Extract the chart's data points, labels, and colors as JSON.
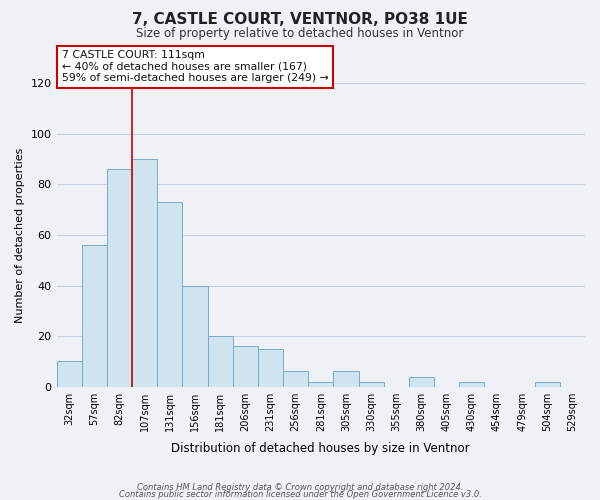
{
  "title": "7, CASTLE COURT, VENTNOR, PO38 1UE",
  "subtitle": "Size of property relative to detached houses in Ventnor",
  "xlabel": "Distribution of detached houses by size in Ventnor",
  "ylabel": "Number of detached properties",
  "bar_color": "#d0e4f0",
  "bar_edge_color": "#7aaac8",
  "categories": [
    "32sqm",
    "57sqm",
    "82sqm",
    "107sqm",
    "131sqm",
    "156sqm",
    "181sqm",
    "206sqm",
    "231sqm",
    "256sqm",
    "281sqm",
    "305sqm",
    "330sqm",
    "355sqm",
    "380sqm",
    "405sqm",
    "430sqm",
    "454sqm",
    "479sqm",
    "504sqm",
    "529sqm"
  ],
  "values": [
    10,
    56,
    86,
    90,
    73,
    40,
    20,
    16,
    15,
    6,
    2,
    6,
    2,
    0,
    4,
    0,
    2,
    0,
    0,
    2,
    0
  ],
  "ylim": [
    0,
    120
  ],
  "yticks": [
    0,
    20,
    40,
    60,
    80,
    100,
    120
  ],
  "vline_color": "#cc0000",
  "annotation_box_color": "#cc0000",
  "annotation_line1": "7 CASTLE COURT: 111sqm",
  "annotation_line2": "← 40% of detached houses are smaller (167)",
  "annotation_line3": "59% of semi-detached houses are larger (249) →",
  "footer_line1": "Contains HM Land Registry data © Crown copyright and database right 2024.",
  "footer_line2": "Contains public sector information licensed under the Open Government Licence v3.0.",
  "background_color": "#eef2f7",
  "plot_background_color": "#eef2f7",
  "grid_color": "#c5cfe0"
}
